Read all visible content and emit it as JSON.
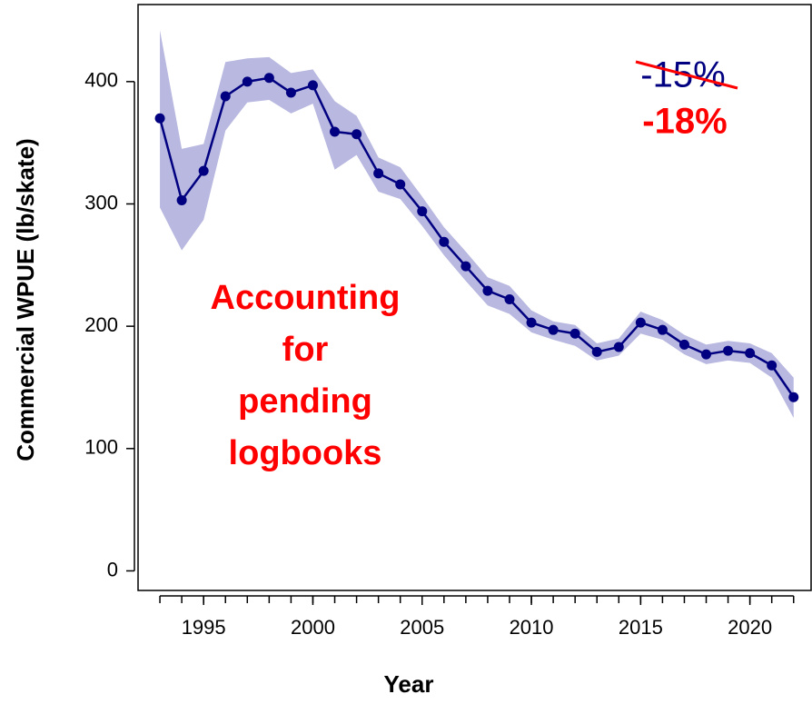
{
  "chart_data": {
    "type": "line",
    "xlabel": "Year",
    "ylabel": "Commercial WPUE (lb/skate)",
    "x": [
      1993,
      1994,
      1995,
      1996,
      1997,
      1998,
      1999,
      2000,
      2001,
      2002,
      2003,
      2004,
      2005,
      2006,
      2007,
      2008,
      2009,
      2010,
      2011,
      2012,
      2013,
      2014,
      2015,
      2016,
      2017,
      2018,
      2019,
      2020,
      2021,
      2022
    ],
    "series": [
      {
        "color": "#000080",
        "band_color": "#b8b8e0",
        "values": [
          370,
          303,
          327,
          388,
          400,
          403,
          391,
          397,
          359,
          357,
          325,
          316,
          294,
          269,
          249,
          229,
          222,
          203,
          197,
          194,
          179,
          183,
          203,
          197,
          185,
          177,
          180,
          178,
          168,
          142
        ],
        "upper": [
          442,
          345,
          349,
          416,
          419,
          420,
          407,
          410,
          384,
          372,
          338,
          330,
          306,
          281,
          261,
          240,
          233,
          213,
          204,
          201,
          186,
          190,
          212,
          205,
          193,
          185,
          188,
          186,
          178,
          158
        ],
        "lower": [
          297,
          262,
          287,
          360,
          383,
          385,
          374,
          382,
          328,
          340,
          310,
          304,
          282,
          258,
          237,
          217,
          210,
          195,
          189,
          184,
          172,
          176,
          194,
          189,
          177,
          169,
          172,
          170,
          158,
          125
        ]
      }
    ],
    "xlim": [
      1992,
      2022.8
    ],
    "ylim": [
      -16,
      463
    ],
    "xticks": [
      1995,
      2000,
      2005,
      2010,
      2015,
      2020
    ],
    "xminorticks": [
      1993,
      1994,
      1995,
      1996,
      1997,
      1998,
      1999,
      2000,
      2001,
      2002,
      2003,
      2004,
      2005,
      2006,
      2007,
      2008,
      2009,
      2010,
      2011,
      2012,
      2013,
      2014,
      2015,
      2016,
      2017,
      2018,
      2019,
      2020,
      2021,
      2022
    ],
    "yticks": [
      0,
      100,
      200,
      300,
      400
    ],
    "annotations": {
      "old_change": "-15%",
      "new_change": "-18%",
      "note_lines": [
        "Accounting",
        "for",
        "pending",
        "logbooks"
      ]
    }
  }
}
